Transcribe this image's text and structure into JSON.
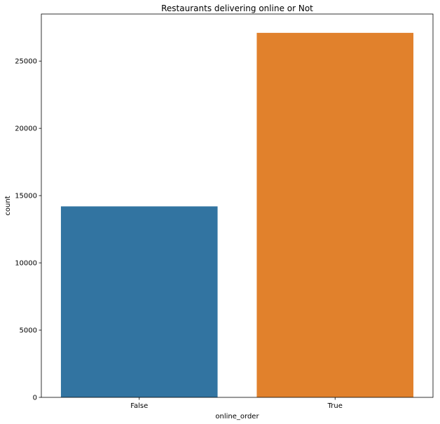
{
  "chart_data": {
    "type": "bar",
    "title": "Restaurants delivering online or Not",
    "xlabel": "online_order",
    "ylabel": "count",
    "categories": [
      "False",
      "True"
    ],
    "values": [
      14200,
      27100
    ],
    "ylim": [
      0,
      28500
    ],
    "yticks": [
      0,
      5000,
      10000,
      15000,
      20000,
      25000
    ],
    "ytick_labels": [
      "0",
      "5000",
      "10000",
      "15000",
      "20000",
      "25000"
    ],
    "colors": [
      "#3274a1",
      "#e1812c"
    ],
    "grid": false,
    "legend": false
  }
}
